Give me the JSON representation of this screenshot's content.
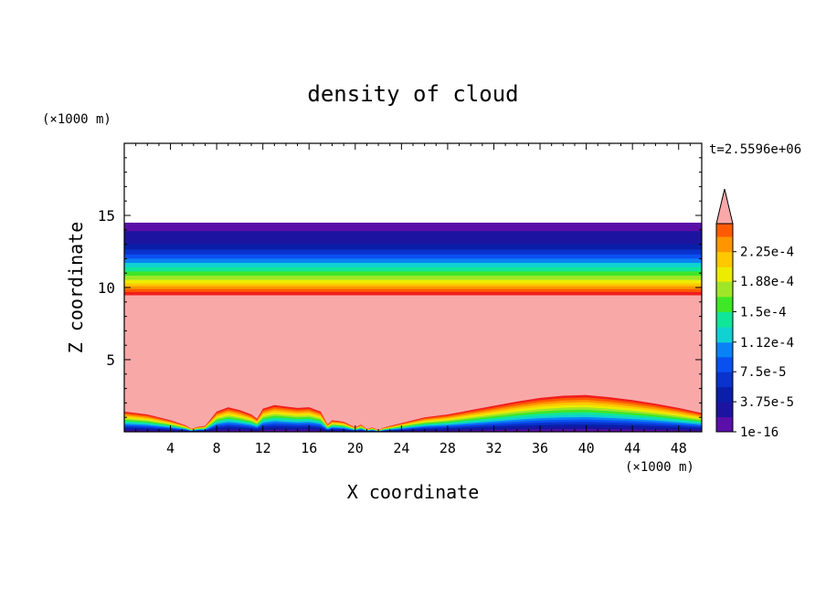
{
  "chart_data": {
    "type": "heatmap",
    "title": "density of cloud",
    "time_label": "t=2.5596e+06",
    "xlabel": "X coordinate",
    "ylabel": "Z coordinate",
    "x_unit": "(×1000 m)",
    "y_unit": "(×1000 m)",
    "xlim": [
      0,
      50
    ],
    "ylim": [
      0,
      20
    ],
    "x_ticks": [
      4,
      8,
      12,
      16,
      20,
      24,
      28,
      32,
      36,
      40,
      44,
      48
    ],
    "y_ticks": [
      5,
      10,
      15
    ],
    "colorbar": {
      "tick_labels": [
        "1e-16",
        "3.75e-5",
        "7.5e-5",
        "1.12e-4",
        "1.5e-4",
        "1.88e-4",
        "2.25e-4"
      ],
      "tick_values": [
        0,
        3.75e-05,
        7.5e-05,
        0.000112,
        0.00015,
        0.000188,
        0.000225
      ],
      "levels": [
        0,
        1.875e-05,
        3.75e-05,
        5.625e-05,
        7.5e-05,
        9.375e-05,
        0.000112,
        0.000131,
        0.00015,
        0.000169,
        0.000188,
        0.000206,
        0.000225,
        0.000244,
        0.00026
      ],
      "colors": [
        "#5a10a8",
        "#1c14a0",
        "#0a1ea8",
        "#0a32cc",
        "#0a50f0",
        "#0a82f5",
        "#10d2d2",
        "#10e69a",
        "#40e628",
        "#a0e628",
        "#ecec00",
        "#ffc800",
        "#ff9600",
        "#ff5a00",
        "#f01e1e"
      ],
      "extend_color": "#f9a8a8"
    },
    "fields": {
      "upper_layer": {
        "z_bottom": 9.5,
        "z_top": 14.5
      },
      "lower_layer_top_profile": {
        "x": [
          0,
          2,
          4,
          5.3,
          5.8,
          6.4,
          7,
          8,
          9,
          10,
          11,
          11.5,
          12,
          13,
          14,
          15,
          16,
          17,
          17.6,
          18,
          19,
          20,
          20.5,
          21,
          21.5,
          22,
          22.5,
          24,
          26,
          28,
          30,
          32,
          34,
          36,
          38,
          40,
          42,
          44,
          46,
          48,
          50
        ],
        "z": [
          1.4,
          1.2,
          0.8,
          0.45,
          0.2,
          0.35,
          0.4,
          1.4,
          1.7,
          1.5,
          1.2,
          0.9,
          1.6,
          1.85,
          1.75,
          1.65,
          1.7,
          1.4,
          0.5,
          0.8,
          0.7,
          0.3,
          0.5,
          0.2,
          0.3,
          0.1,
          0.3,
          0.6,
          1.0,
          1.2,
          1.5,
          1.8,
          2.1,
          2.35,
          2.5,
          2.55,
          2.4,
          2.2,
          1.95,
          1.65,
          1.3
        ]
      }
    }
  }
}
